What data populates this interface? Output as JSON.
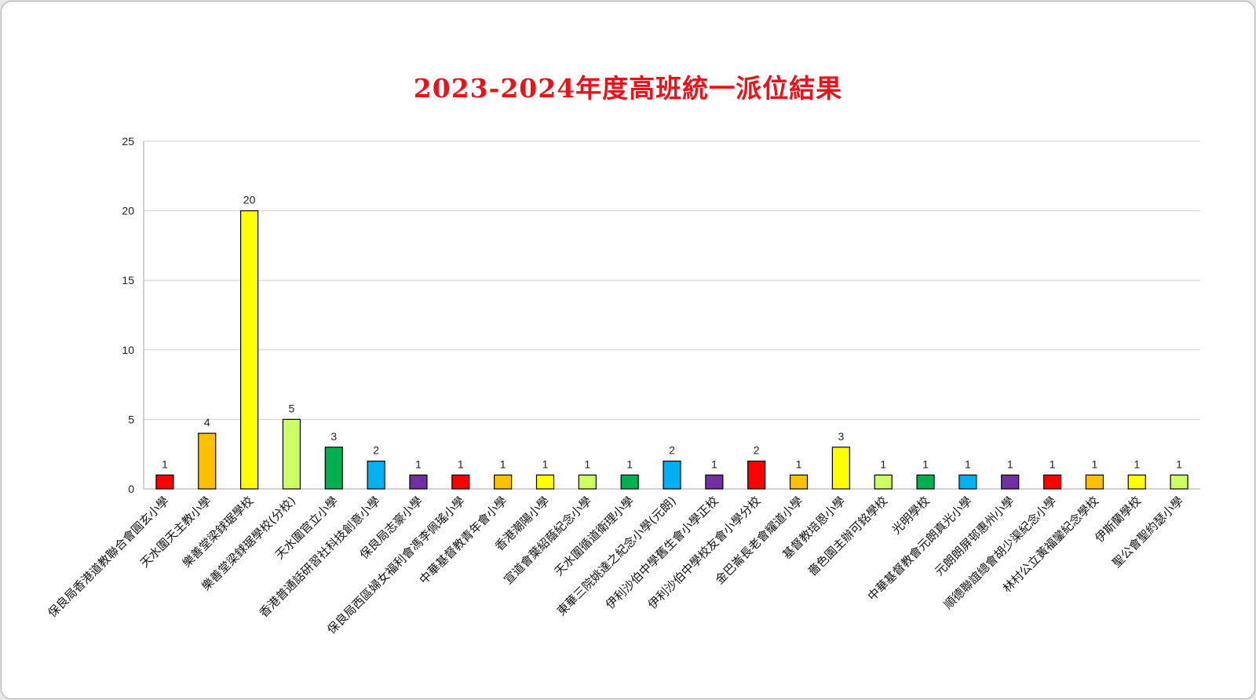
{
  "chart_data": {
    "type": "bar",
    "title": "2023-2024年度高班統一派位結果",
    "xlabel": "",
    "ylabel": "",
    "ylim": [
      0,
      25
    ],
    "yticks": [
      0,
      5,
      10,
      15,
      20,
      25
    ],
    "grid": true,
    "legend": "none",
    "title_color": "#e8141b",
    "categories": [
      "保良局香港道教聯合會圓玄小學",
      "天水圍天主教小學",
      "樂善堂梁銶琚學校",
      "樂善堂梁銶琚學校(分校)",
      "天水圍官立小學",
      "香港普通話研習社科技創意小學",
      "保良局志豪小學",
      "保良局西區婦女福利會馮李佩瑤小學",
      "中華基督教青年會小學",
      "香港潮陽小學",
      "宣道會葉紹蔭紀念小學",
      "天水圍循道衛理小學",
      "東華三院姚達之紀念小學(元朗)",
      "伊利沙伯中學舊生會小學正校",
      "伊利沙伯中學校友會小學分校",
      "金巴崙長老會耀道小學",
      "基督教培恩小學",
      "嗇色園主辦可銘學校",
      "光明學校",
      "中華基督教會元朗真光小學",
      "元朗朗屏邨惠州小學",
      "順德聯誼總會胡少渠紀念小學",
      "林村公立黃福鑾紀念學校",
      "伊斯蘭學校",
      "聖公會聖約瑟小學"
    ],
    "values": [
      1,
      4,
      20,
      5,
      3,
      2,
      1,
      1,
      1,
      1,
      1,
      1,
      2,
      1,
      2,
      1,
      3,
      1,
      1,
      1,
      1,
      1,
      1,
      1,
      1
    ],
    "colors": [
      "#ff0000",
      "#ffc000",
      "#ffff00",
      "#ccff66",
      "#00b050",
      "#00b0f0",
      "#7030a0"
    ]
  }
}
